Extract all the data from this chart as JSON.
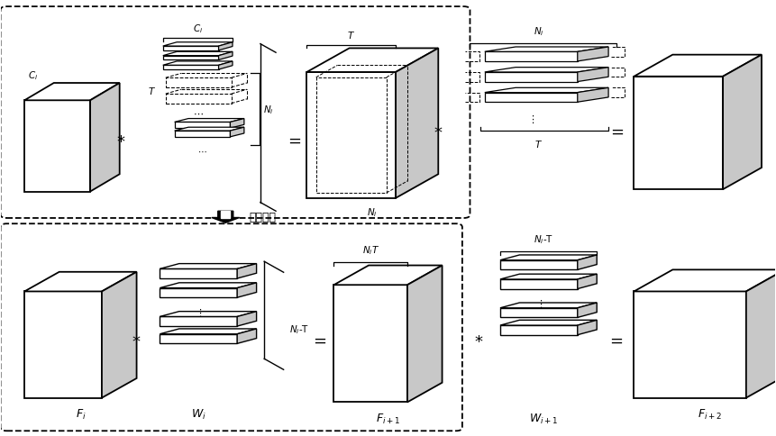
{
  "bg_color": "#ffffff",
  "gray_fill": "#c8c8c8",
  "arrow_label": "模型压缩",
  "fig_w": 8.61,
  "fig_h": 4.85,
  "dpi": 100
}
